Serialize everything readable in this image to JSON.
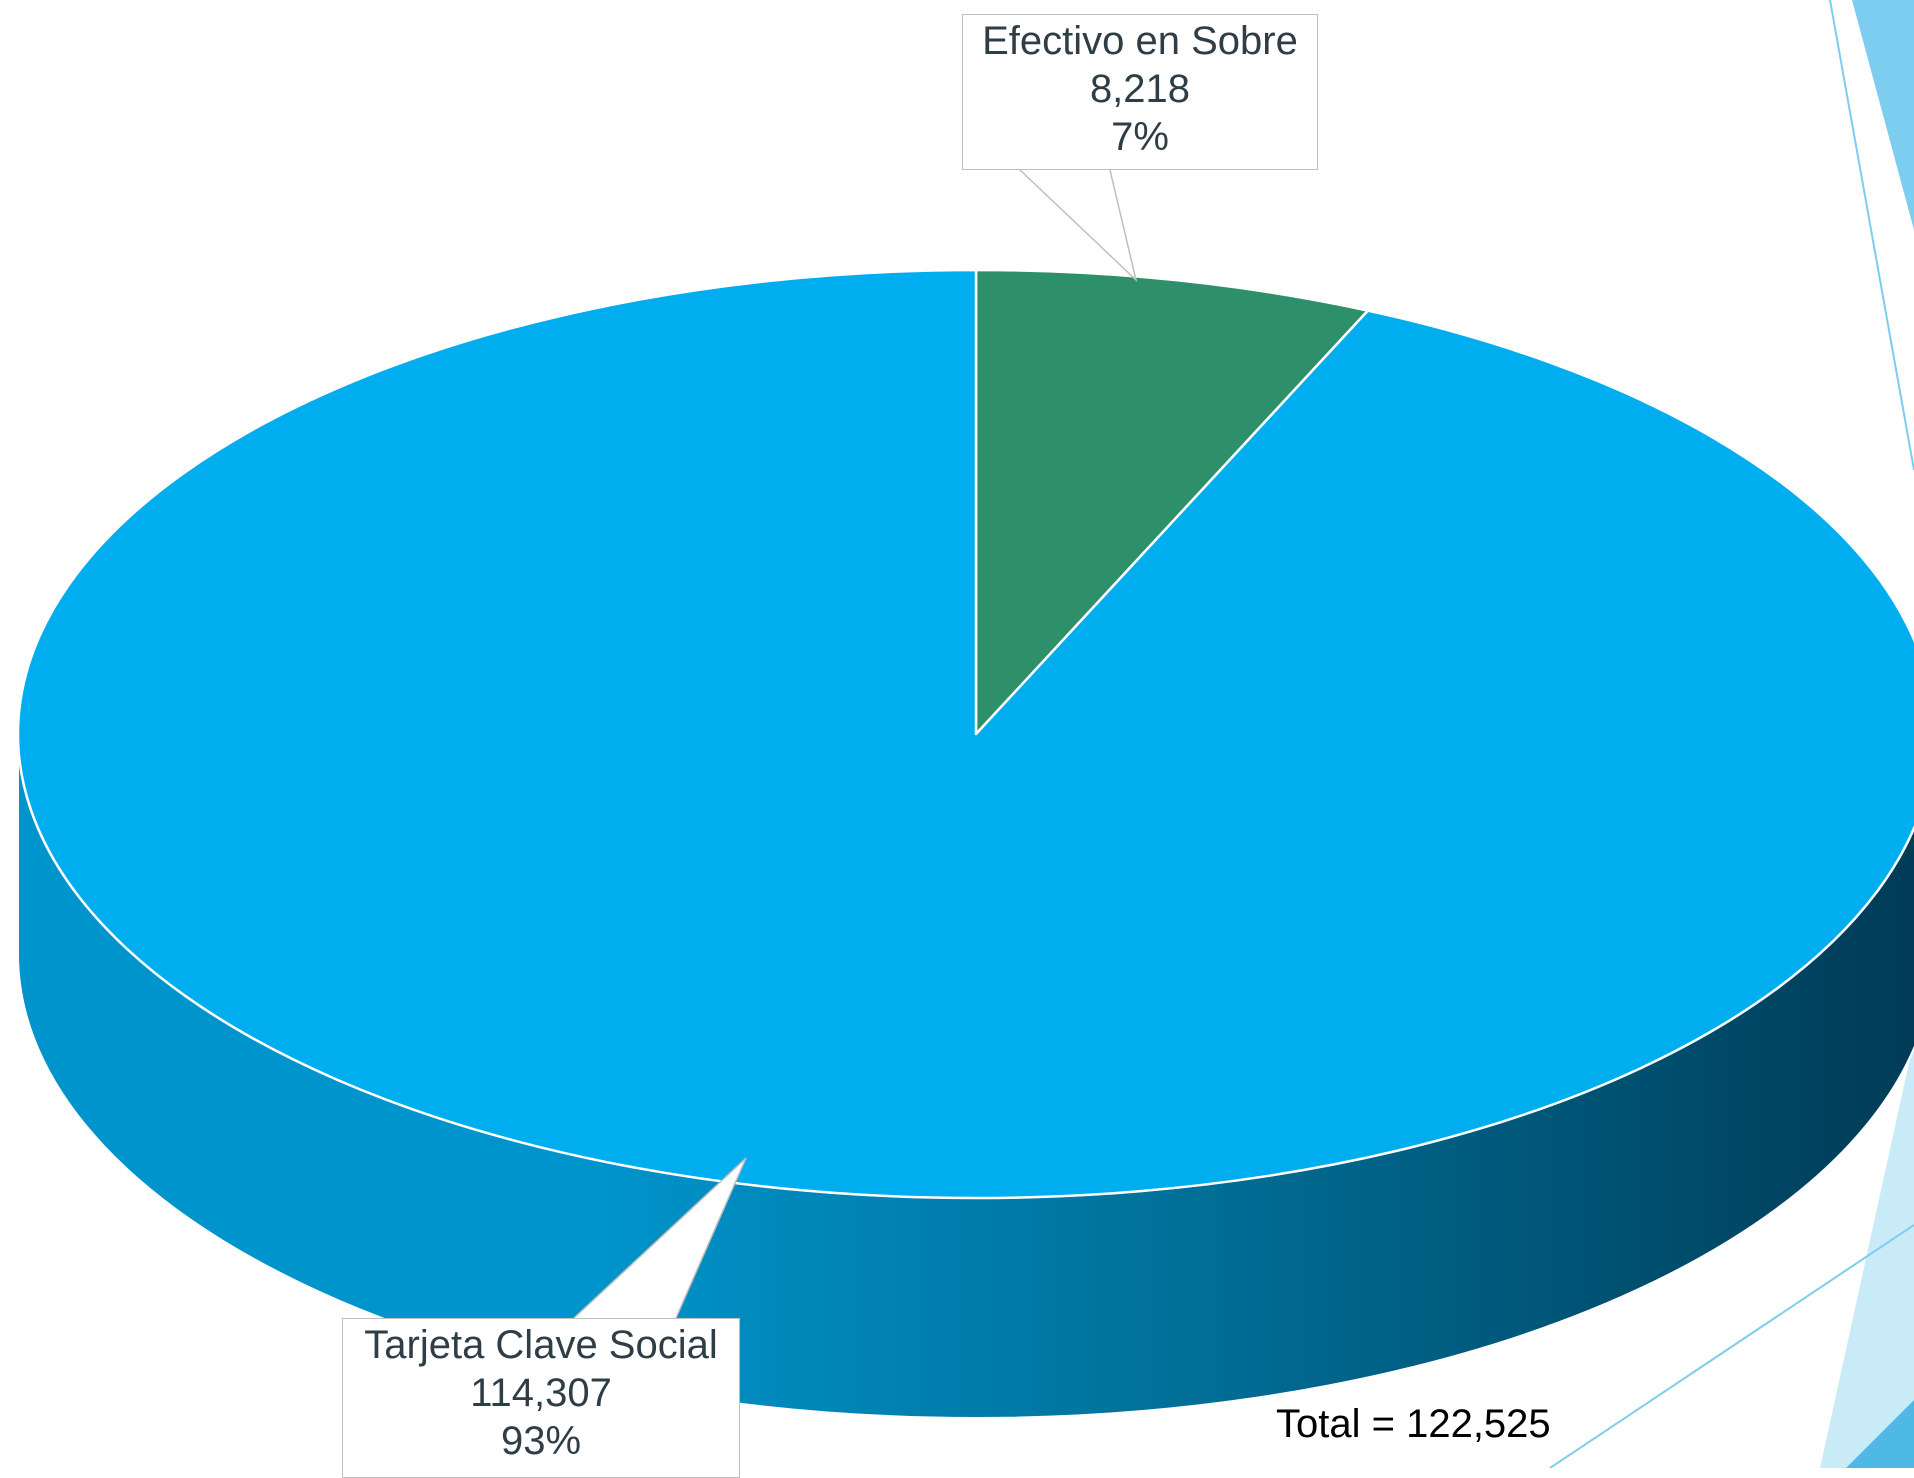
{
  "chart_data": {
    "type": "pie",
    "style": "3d",
    "slices": [
      {
        "label": "Efectivo en Sobre",
        "value": 8218,
        "value_text": "8,218",
        "percent_text": "7%",
        "color": "#2e8f6b"
      },
      {
        "label": "Tarjeta Clave Social",
        "value": 114307,
        "value_text": "114,307",
        "percent_text": "93%",
        "color": "#00aeef"
      }
    ],
    "side_colors": {
      "light": "#0094cc",
      "mid": "#006e96",
      "dark": "#003a55"
    },
    "total_text": "Total = 122,525"
  },
  "decor": {
    "accent_light": "#7ccdf0",
    "accent_pale": "#c9ebf8",
    "accent_mid": "#4fb9e6"
  }
}
